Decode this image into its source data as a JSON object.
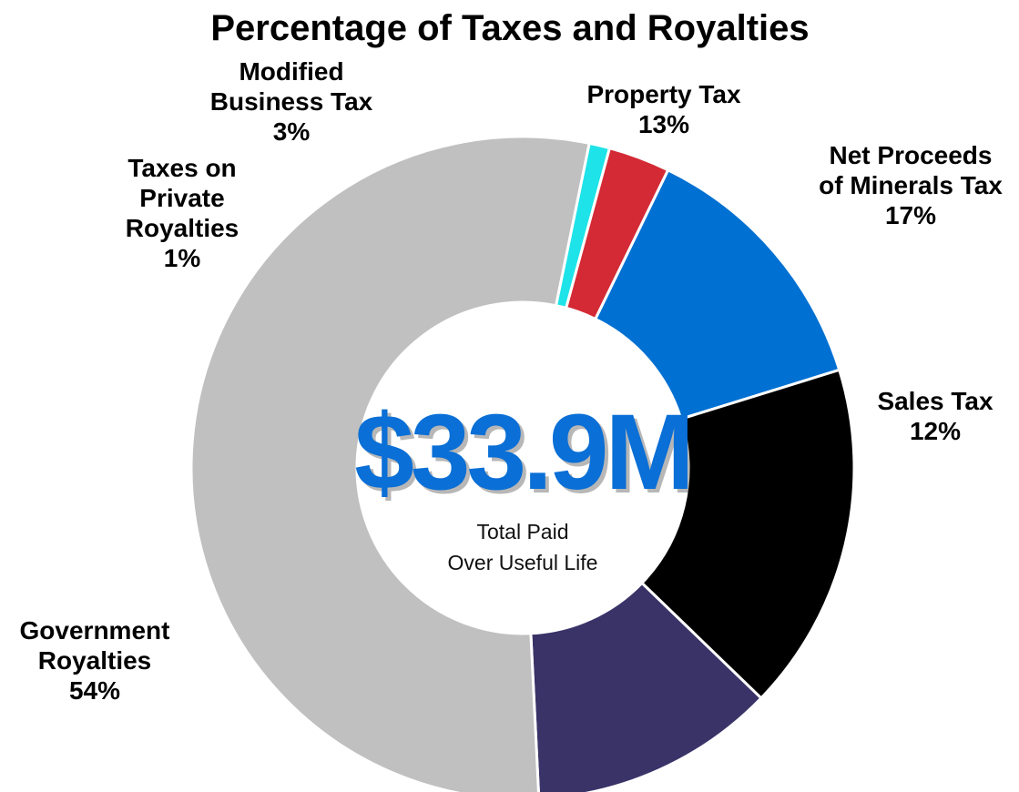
{
  "chart_data": {
    "type": "pie",
    "title": "Percentage of Taxes and Royalties",
    "center_value": "$33.9M",
    "center_caption": [
      "Total Paid",
      "Over Useful Life"
    ],
    "slices": [
      {
        "label": [
          "Property Tax"
        ],
        "percent_label": "13%",
        "value": 13,
        "color": "#0070D2"
      },
      {
        "label": [
          "Net Proceeds",
          "of Minerals Tax"
        ],
        "percent_label": "17%",
        "value": 17,
        "color": "#000000"
      },
      {
        "label": [
          "Sales Tax"
        ],
        "percent_label": "12%",
        "value": 12,
        "color": "#3A3368"
      },
      {
        "label": [
          "Government",
          "Royalties"
        ],
        "percent_label": "54%",
        "value": 54,
        "color": "#C0C0C0"
      },
      {
        "label": [
          "Taxes on",
          "Private",
          "Royalties"
        ],
        "percent_label": "1%",
        "value": 1,
        "color": "#1EE3E8"
      },
      {
        "label": [
          "Modified",
          "Business Tax"
        ],
        "percent_label": "3%",
        "value": 3,
        "color": "#D32A35"
      }
    ],
    "colors": {
      "center_value": "#0A6FD6"
    }
  }
}
